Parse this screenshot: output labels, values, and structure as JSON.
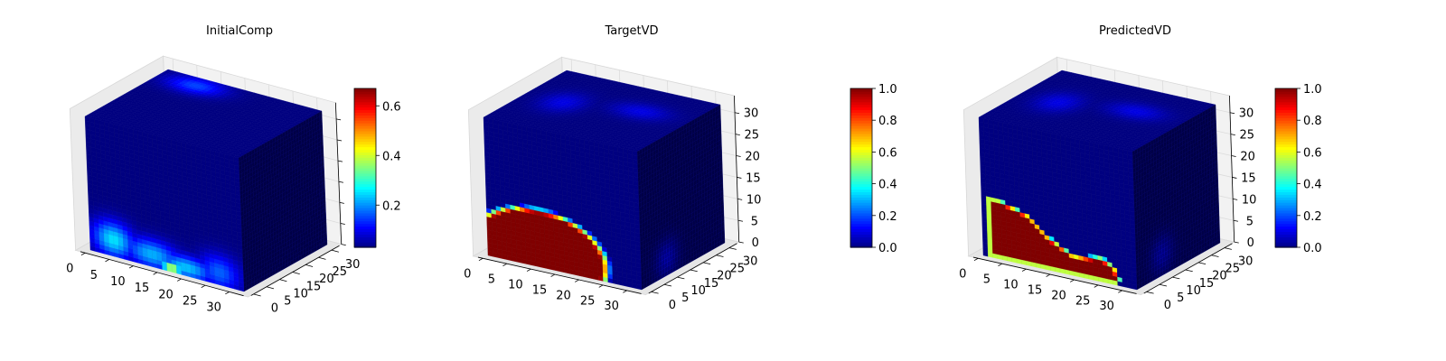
{
  "chart_data": [
    {
      "type": "heatmap",
      "subtype": "3d-voxel-cube",
      "title": "InitialComp",
      "x_ticks": [
        "0",
        "5",
        "10",
        "15",
        "20",
        "25",
        "30"
      ],
      "y_ticks": [
        "0",
        "5",
        "10",
        "15",
        "20",
        "25",
        "30"
      ],
      "z_ticks": [],
      "xlim": [
        0,
        32
      ],
      "ylim": [
        0,
        32
      ],
      "zlim": [
        0,
        32
      ],
      "colormap": "jet",
      "colorbar": {
        "range": [
          0.03,
          0.67
        ],
        "ticks": [
          "0.2",
          "0.4",
          "0.6"
        ],
        "tick_values": [
          0.2,
          0.4,
          0.6
        ]
      },
      "front_face_blobs": [
        {
          "x": 5,
          "z": 4,
          "sx": 3,
          "sz": 3,
          "value": 0.35
        },
        {
          "x": 13,
          "z": 3,
          "sx": 4,
          "sz": 2.5,
          "value": 0.3
        },
        {
          "x": 20,
          "z": 2,
          "sx": 4,
          "sz": 2,
          "value": 0.32
        },
        {
          "x": 17,
          "z": 1,
          "sx": 1.5,
          "sz": 0.8,
          "value": 0.65
        },
        {
          "x": 27,
          "z": 3,
          "sx": 3,
          "sz": 3,
          "value": 0.22
        }
      ],
      "top_face_blobs": [
        {
          "x": 8,
          "y": 28,
          "sx": 4,
          "sy": 3,
          "value": 0.15
        }
      ],
      "side_face_blobs": []
    },
    {
      "type": "heatmap",
      "subtype": "3d-voxel-cube",
      "title": "TargetVD",
      "x_ticks": [
        "0",
        "5",
        "10",
        "15",
        "20",
        "25",
        "30"
      ],
      "y_ticks": [
        "0",
        "5",
        "10",
        "15",
        "20",
        "25",
        "30"
      ],
      "z_ticks": [
        "0",
        "5",
        "10",
        "15",
        "20",
        "25",
        "30"
      ],
      "xlim": [
        0,
        32
      ],
      "ylim": [
        0,
        32
      ],
      "zlim": [
        0,
        32
      ],
      "colormap": "jet",
      "colorbar": {
        "range": [
          0.0,
          1.0
        ],
        "ticks": [
          "0.0",
          "0.2",
          "0.4",
          "0.6",
          "0.8",
          "1.0"
        ],
        "tick_values": [
          0.0,
          0.2,
          0.4,
          0.6,
          0.8,
          1.0
        ]
      },
      "front_face_ellipse": {
        "cx": 11,
        "cz": 3,
        "rx": 15,
        "rz": 11,
        "value": 1.0
      },
      "front_face_blobs": [
        {
          "x": 11,
          "z": 5,
          "sx": 2,
          "sz": 2,
          "value": 1.0
        }
      ],
      "top_face_blobs": [
        {
          "x": 8,
          "y": 16,
          "sx": 3,
          "sy": 4,
          "value": 0.12
        },
        {
          "x": 22,
          "y": 20,
          "sx": 4,
          "sy": 3,
          "value": 0.12
        }
      ],
      "side_face_blobs": [
        {
          "y": 10,
          "z": 4,
          "sy": 3,
          "sz": 3,
          "value": 0.12
        }
      ]
    },
    {
      "type": "heatmap",
      "subtype": "3d-voxel-cube",
      "title": "PredictedVD",
      "x_ticks": [
        "0",
        "5",
        "10",
        "15",
        "20",
        "25",
        "30"
      ],
      "y_ticks": [
        "0",
        "5",
        "10",
        "15",
        "20",
        "25",
        "30"
      ],
      "z_ticks": [
        "0",
        "5",
        "10",
        "15",
        "20",
        "25",
        "30"
      ],
      "xlim": [
        0,
        32
      ],
      "ylim": [
        0,
        32
      ],
      "zlim": [
        0,
        32
      ],
      "colormap": "jet",
      "colorbar": {
        "range": [
          0.0,
          1.0
        ],
        "ticks": [
          "0.0",
          "0.2",
          "0.4",
          "0.6",
          "0.8",
          "1.0"
        ],
        "tick_values": [
          0.0,
          0.2,
          0.4,
          0.6,
          0.8,
          1.0
        ]
      },
      "front_face_region": [
        [
          1,
          0
        ],
        [
          1,
          14
        ],
        [
          4,
          14
        ],
        [
          10,
          12
        ],
        [
          14,
          8
        ],
        [
          19,
          5
        ],
        [
          25,
          6
        ],
        [
          28,
          4
        ],
        [
          29,
          1
        ],
        [
          28,
          0
        ]
      ],
      "front_face_blobs": [],
      "top_face_blobs": [
        {
          "x": 8,
          "y": 16,
          "sx": 3,
          "sy": 4,
          "value": 0.12
        },
        {
          "x": 22,
          "y": 20,
          "sx": 4,
          "sy": 3,
          "value": 0.12
        }
      ],
      "side_face_blobs": [
        {
          "y": 10,
          "z": 5,
          "sy": 3,
          "sz": 3,
          "value": 0.1
        }
      ]
    }
  ]
}
